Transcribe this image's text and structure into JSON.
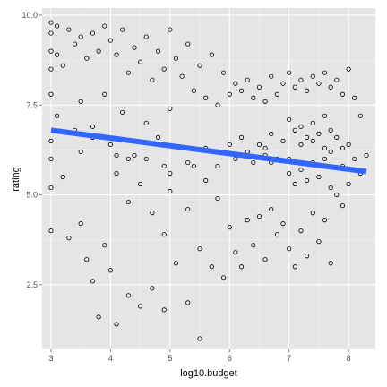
{
  "chart_data": {
    "type": "scatter",
    "title": "",
    "xlabel": "log10.budget",
    "ylabel": "rating",
    "xlim": [
      2.85,
      8.45
    ],
    "ylim": [
      0.7,
      10.2
    ],
    "xticks": [
      "3",
      "4",
      "5",
      "6",
      "7",
      "8"
    ],
    "yticks": [
      "2.5",
      "5.0",
      "7.5",
      "10.0"
    ],
    "grid": true,
    "legend": "none",
    "colors": {
      "panel": "#e5e5e5",
      "grid_major": "#ffffff",
      "grid_minor": "#f2f2f2",
      "points": "#000000",
      "trend": "#3366ff"
    },
    "series": [
      {
        "kind": "points",
        "x": [
          3.0,
          3.0,
          3.0,
          3.0,
          3.0,
          3.0,
          3.0,
          3.1,
          3.1,
          3.0,
          3.0,
          3.1,
          3.2,
          3.2,
          3.3,
          3.3,
          3.4,
          3.4,
          3.5,
          3.5,
          3.5,
          3.6,
          3.6,
          3.7,
          3.7,
          3.7,
          3.8,
          3.8,
          3.9,
          3.9,
          3.9,
          4.0,
          4.0,
          4.0,
          4.1,
          4.1,
          4.1,
          4.2,
          4.2,
          4.3,
          4.3,
          4.3,
          4.4,
          4.4,
          4.5,
          4.5,
          4.5,
          4.6,
          4.6,
          4.7,
          4.7,
          4.7,
          4.8,
          4.8,
          4.9,
          4.9,
          4.9,
          5.0,
          5.0,
          5.0,
          5.1,
          5.1,
          5.2,
          5.2,
          5.3,
          5.3,
          5.3,
          5.4,
          5.4,
          5.5,
          5.5,
          5.5,
          5.6,
          5.6,
          5.7,
          5.7,
          5.8,
          5.8,
          5.9,
          5.9,
          6.0,
          6.0,
          6.0,
          6.1,
          6.1,
          6.1,
          6.2,
          6.2,
          6.2,
          6.3,
          6.3,
          6.3,
          6.4,
          6.4,
          6.4,
          6.5,
          6.5,
          6.5,
          6.6,
          6.6,
          6.6,
          6.7,
          6.7,
          6.7,
          6.8,
          6.8,
          6.8,
          6.9,
          6.9,
          6.9,
          7.0,
          7.0,
          7.0,
          7.0,
          7.1,
          7.1,
          7.1,
          7.1,
          7.2,
          7.2,
          7.2,
          7.2,
          7.3,
          7.3,
          7.3,
          7.3,
          7.4,
          7.4,
          7.4,
          7.4,
          7.5,
          7.5,
          7.5,
          7.5,
          7.6,
          7.6,
          7.6,
          7.6,
          7.7,
          7.7,
          7.7,
          7.7,
          7.8,
          7.8,
          7.8,
          7.9,
          7.9,
          7.9,
          8.0,
          8.0,
          8.0,
          8.1,
          8.1,
          8.2,
          8.2,
          8.3,
          3.5,
          4.3,
          4.9,
          5.6,
          6.2,
          6.7,
          7.2,
          7.7,
          5.0,
          5.3,
          3.7,
          4.6,
          6.6,
          7.4,
          7.9,
          4.1,
          5.8,
          6.3,
          7.0,
          7.6
        ],
        "y": [
          9.8,
          9.5,
          9.0,
          8.5,
          7.8,
          6.5,
          5.2,
          9.7,
          8.9,
          4.0,
          6.0,
          7.2,
          8.6,
          5.5,
          9.6,
          3.8,
          9.2,
          6.8,
          9.4,
          7.6,
          4.2,
          8.8,
          3.2,
          9.5,
          6.9,
          2.6,
          9.0,
          1.6,
          9.7,
          7.8,
          3.6,
          9.3,
          6.4,
          2.9,
          8.9,
          5.6,
          1.4,
          9.6,
          7.3,
          8.4,
          4.8,
          2.2,
          9.1,
          6.1,
          8.7,
          5.3,
          1.9,
          9.4,
          7.0,
          8.2,
          4.5,
          2.4,
          9.0,
          6.6,
          8.5,
          3.9,
          1.8,
          9.6,
          7.4,
          5.1,
          8.8,
          3.1,
          8.3,
          6.3,
          9.2,
          4.6,
          2.0,
          7.9,
          5.8,
          8.6,
          3.5,
          1.0,
          7.7,
          5.4,
          8.9,
          3.0,
          7.5,
          4.9,
          8.4,
          2.7,
          7.8,
          6.4,
          4.1,
          8.1,
          6.0,
          3.4,
          7.9,
          6.6,
          3.0,
          8.2,
          6.2,
          4.3,
          7.7,
          5.9,
          3.6,
          8.0,
          6.4,
          4.4,
          7.6,
          6.1,
          3.2,
          8.3,
          6.7,
          4.6,
          7.8,
          6.0,
          3.9,
          8.1,
          6.5,
          4.2,
          8.4,
          7.1,
          5.6,
          3.5,
          8.0,
          6.8,
          5.3,
          3.0,
          8.2,
          6.9,
          5.7,
          4.0,
          7.9,
          6.6,
          5.4,
          3.3,
          8.3,
          7.0,
          5.9,
          4.5,
          8.1,
          6.7,
          5.5,
          3.7,
          8.4,
          7.2,
          6.0,
          4.3,
          8.0,
          6.8,
          5.2,
          3.1,
          8.2,
          6.6,
          5.0,
          7.8,
          6.3,
          4.7,
          8.5,
          6.4,
          5.3,
          7.7,
          6.0,
          7.2,
          5.6,
          6.1,
          6.2,
          6.0,
          5.8,
          6.3,
          6.1,
          5.9,
          6.4,
          6.2,
          5.6,
          5.9,
          6.6,
          6.0,
          6.3,
          6.5,
          5.8,
          6.1,
          5.8,
          6.2,
          6.0,
          6.3
        ]
      },
      {
        "kind": "trend",
        "x": [
          3.0,
          8.3
        ],
        "y": [
          6.8,
          5.65
        ]
      }
    ]
  }
}
